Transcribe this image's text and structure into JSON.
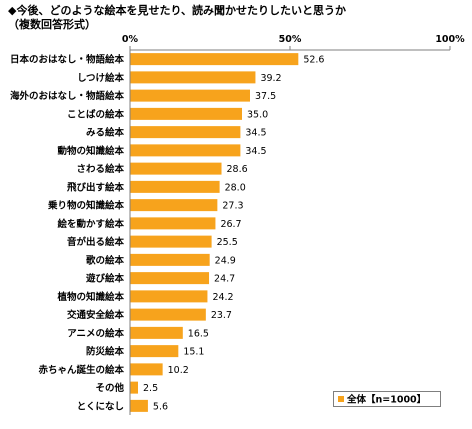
{
  "chart_data": {
    "type": "bar",
    "orientation": "horizontal",
    "title": "◆今後、どのような絵本を見せたり、読み聞かせたりしたいと思うか",
    "subtitle": "（複数回答形式）",
    "xlim": [
      0,
      100
    ],
    "x_tick_values": [
      0,
      50,
      100
    ],
    "x_tick_labels": [
      "0%",
      "50%",
      "100%"
    ],
    "categories": [
      "日本のおはなし・物語絵本",
      "しつけ絵本",
      "海外のおはなし・物語絵本",
      "ことばの絵本",
      "みる絵本",
      "動物の知識絵本",
      "さわる絵本",
      "飛び出す絵本",
      "乗り物の知識絵本",
      "絵を動かす絵本",
      "音が出る絵本",
      "歌の絵本",
      "遊び絵本",
      "植物の知識絵本",
      "交通安全絵本",
      "アニメの絵本",
      "防災絵本",
      "赤ちゃん誕生の絵本",
      "その他",
      "とくになし"
    ],
    "series": [
      {
        "name": "全体【n=1000】",
        "color": "#F7A31C",
        "values": [
          52.6,
          39.2,
          37.5,
          35.0,
          34.5,
          34.5,
          28.6,
          28.0,
          27.3,
          26.7,
          25.5,
          24.9,
          24.7,
          24.2,
          23.7,
          16.5,
          15.1,
          10.2,
          2.5,
          5.6
        ],
        "data_labels": [
          "52.6",
          "39.2",
          "37.5",
          "35.0",
          "34.5",
          "34.5",
          "28.6",
          "28.0",
          "27.3",
          "26.7",
          "25.5",
          "24.9",
          "24.7",
          "24.2",
          "23.7",
          "16.5",
          "15.1",
          "10.2",
          "2.5",
          "5.6"
        ]
      }
    ],
    "legend_position": "bottom-right",
    "grid": false
  }
}
